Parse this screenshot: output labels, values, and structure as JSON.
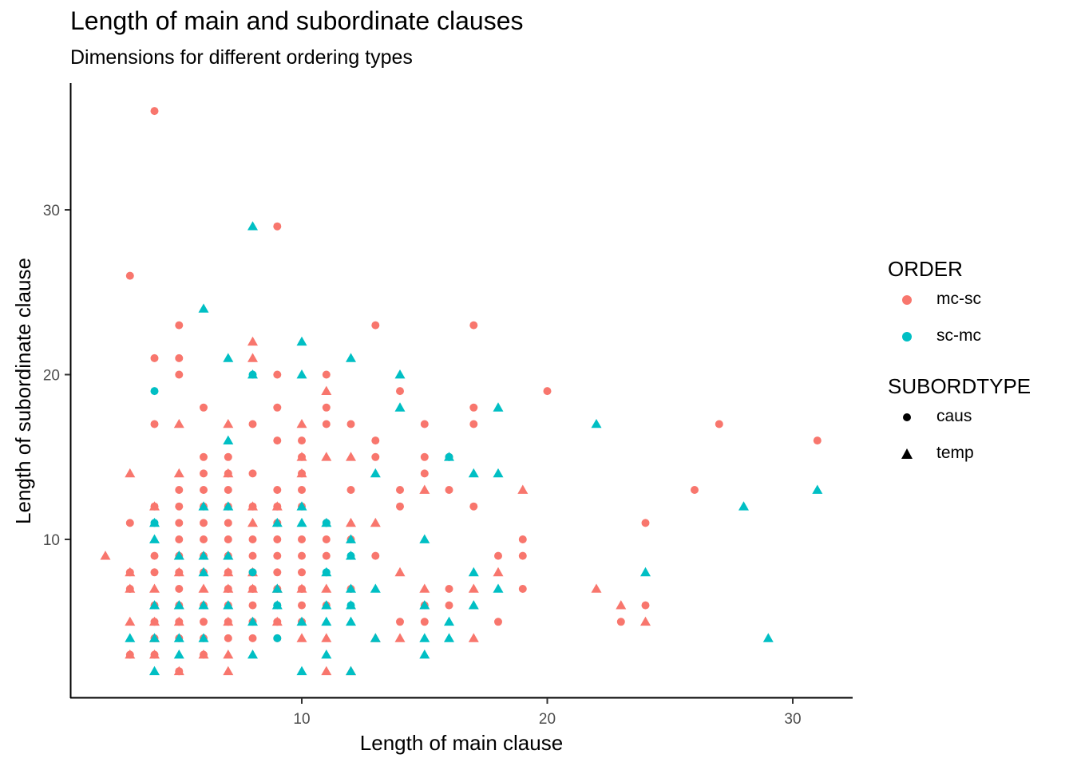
{
  "title": "Length of main and subordinate clauses",
  "subtitle": "Dimensions for different ordering types",
  "legend": {
    "order": {
      "title": "ORDER",
      "items": [
        {
          "label": "mc-sc",
          "color": "#F8766D"
        },
        {
          "label": "sc-mc",
          "color": "#00BFC4"
        }
      ]
    },
    "subordtype": {
      "title": "SUBORDTYPE",
      "items": [
        {
          "label": "caus",
          "shape": "circle"
        },
        {
          "label": "temp",
          "shape": "triangle"
        }
      ]
    }
  },
  "chart_data": {
    "type": "scatter",
    "title": "Length of main and subordinate clauses",
    "subtitle": "Dimensions for different ordering types",
    "xlabel": "Length of main clause",
    "ylabel": "Length of subordinate clause",
    "xlim": [
      1,
      33
    ],
    "ylim": [
      0,
      37
    ],
    "xticks": [
      10,
      20,
      30
    ],
    "yticks": [
      10,
      20,
      30
    ],
    "grid": false,
    "legend_position": "right",
    "colors": {
      "mc-sc": "#F8766D",
      "sc-mc": "#00BFC4"
    },
    "series": [
      {
        "order": "mc-sc",
        "subordtype": "caus",
        "points": [
          [
            4,
            36
          ],
          [
            9,
            29
          ],
          [
            3,
            26
          ],
          [
            5,
            23
          ],
          [
            13,
            23
          ],
          [
            17,
            23
          ],
          [
            4,
            21
          ],
          [
            5,
            21
          ],
          [
            5,
            20
          ],
          [
            9,
            20
          ],
          [
            11,
            20
          ],
          [
            20,
            19
          ],
          [
            14,
            19
          ],
          [
            6,
            18
          ],
          [
            9,
            18
          ],
          [
            11,
            18
          ],
          [
            17,
            18
          ],
          [
            27,
            17
          ],
          [
            4,
            17
          ],
          [
            8,
            17
          ],
          [
            11,
            17
          ],
          [
            12,
            17
          ],
          [
            15,
            17
          ],
          [
            17,
            17
          ],
          [
            31,
            16
          ],
          [
            9,
            16
          ],
          [
            10,
            16
          ],
          [
            13,
            16
          ],
          [
            6,
            15
          ],
          [
            7,
            15
          ],
          [
            10,
            15
          ],
          [
            13,
            15
          ],
          [
            15,
            15
          ],
          [
            16,
            15
          ],
          [
            6,
            14
          ],
          [
            7,
            14
          ],
          [
            8,
            14
          ],
          [
            10,
            14
          ],
          [
            15,
            14
          ],
          [
            26,
            13
          ],
          [
            5,
            13
          ],
          [
            6,
            13
          ],
          [
            7,
            13
          ],
          [
            9,
            13
          ],
          [
            10,
            13
          ],
          [
            12,
            13
          ],
          [
            14,
            13
          ],
          [
            16,
            13
          ],
          [
            4,
            12
          ],
          [
            5,
            12
          ],
          [
            6,
            12
          ],
          [
            7,
            12
          ],
          [
            8,
            12
          ],
          [
            9,
            12
          ],
          [
            10,
            12
          ],
          [
            14,
            12
          ],
          [
            17,
            12
          ],
          [
            3,
            11
          ],
          [
            5,
            11
          ],
          [
            6,
            11
          ],
          [
            7,
            11
          ],
          [
            9,
            11
          ],
          [
            11,
            11
          ],
          [
            24,
            11
          ],
          [
            5,
            10
          ],
          [
            6,
            10
          ],
          [
            7,
            10
          ],
          [
            8,
            10
          ],
          [
            9,
            10
          ],
          [
            10,
            10
          ],
          [
            11,
            10
          ],
          [
            12,
            10
          ],
          [
            19,
            10
          ],
          [
            4,
            9
          ],
          [
            5,
            9
          ],
          [
            6,
            9
          ],
          [
            7,
            9
          ],
          [
            8,
            9
          ],
          [
            9,
            9
          ],
          [
            10,
            9
          ],
          [
            11,
            9
          ],
          [
            13,
            9
          ],
          [
            18,
            9
          ],
          [
            19,
            9
          ],
          [
            3,
            8
          ],
          [
            4,
            8
          ],
          [
            5,
            8
          ],
          [
            6,
            8
          ],
          [
            7,
            8
          ],
          [
            8,
            8
          ],
          [
            9,
            8
          ],
          [
            10,
            8
          ],
          [
            3,
            7
          ],
          [
            5,
            7
          ],
          [
            7,
            7
          ],
          [
            8,
            7
          ],
          [
            9,
            7
          ],
          [
            10,
            7
          ],
          [
            12,
            7
          ],
          [
            16,
            7
          ],
          [
            19,
            7
          ],
          [
            4,
            6
          ],
          [
            5,
            6
          ],
          [
            6,
            6
          ],
          [
            7,
            6
          ],
          [
            8,
            6
          ],
          [
            9,
            6
          ],
          [
            10,
            6
          ],
          [
            11,
            6
          ],
          [
            15,
            6
          ],
          [
            16,
            6
          ],
          [
            24,
            6
          ],
          [
            4,
            5
          ],
          [
            5,
            5
          ],
          [
            6,
            5
          ],
          [
            7,
            5
          ],
          [
            8,
            5
          ],
          [
            9,
            5
          ],
          [
            10,
            5
          ],
          [
            14,
            5
          ],
          [
            15,
            5
          ],
          [
            18,
            5
          ],
          [
            23,
            5
          ],
          [
            4,
            4
          ],
          [
            5,
            4
          ],
          [
            6,
            4
          ],
          [
            7,
            4
          ],
          [
            8,
            4
          ],
          [
            9,
            4
          ],
          [
            3,
            3
          ],
          [
            4,
            3
          ],
          [
            6,
            3
          ],
          [
            5,
            2
          ]
        ]
      },
      {
        "order": "mc-sc",
        "subordtype": "temp",
        "points": [
          [
            8,
            22
          ],
          [
            8,
            21
          ],
          [
            11,
            19
          ],
          [
            5,
            17
          ],
          [
            7,
            17
          ],
          [
            10,
            17
          ],
          [
            10,
            15
          ],
          [
            11,
            15
          ],
          [
            12,
            15
          ],
          [
            3,
            14
          ],
          [
            5,
            14
          ],
          [
            7,
            14
          ],
          [
            10,
            14
          ],
          [
            15,
            13
          ],
          [
            19,
            13
          ],
          [
            4,
            12
          ],
          [
            8,
            12
          ],
          [
            9,
            12
          ],
          [
            8,
            11
          ],
          [
            12,
            11
          ],
          [
            13,
            11
          ],
          [
            2,
            9
          ],
          [
            5,
            9
          ],
          [
            7,
            9
          ],
          [
            3,
            8
          ],
          [
            5,
            8
          ],
          [
            7,
            8
          ],
          [
            8,
            8
          ],
          [
            14,
            8
          ],
          [
            18,
            8
          ],
          [
            3,
            7
          ],
          [
            4,
            7
          ],
          [
            6,
            7
          ],
          [
            7,
            7
          ],
          [
            8,
            7
          ],
          [
            9,
            7
          ],
          [
            10,
            7
          ],
          [
            11,
            7
          ],
          [
            15,
            7
          ],
          [
            17,
            7
          ],
          [
            22,
            7
          ],
          [
            5,
            6
          ],
          [
            23,
            6
          ],
          [
            3,
            5
          ],
          [
            4,
            5
          ],
          [
            5,
            5
          ],
          [
            7,
            5
          ],
          [
            9,
            5
          ],
          [
            24,
            5
          ],
          [
            4,
            4
          ],
          [
            10,
            4
          ],
          [
            11,
            4
          ],
          [
            13,
            4
          ],
          [
            14,
            4
          ],
          [
            17,
            4
          ],
          [
            3,
            3
          ],
          [
            4,
            3
          ],
          [
            6,
            3
          ],
          [
            7,
            3
          ],
          [
            5,
            2
          ],
          [
            7,
            2
          ],
          [
            11,
            2
          ],
          [
            12,
            2
          ]
        ]
      },
      {
        "order": "sc-mc",
        "subordtype": "caus",
        "points": [
          [
            4,
            19
          ],
          [
            8,
            20
          ],
          [
            16,
            15
          ],
          [
            4,
            11
          ],
          [
            11,
            11
          ],
          [
            12,
            9
          ],
          [
            8,
            8
          ],
          [
            11,
            8
          ],
          [
            9,
            6
          ],
          [
            12,
            6
          ],
          [
            9,
            4
          ]
        ]
      },
      {
        "order": "sc-mc",
        "subordtype": "temp",
        "points": [
          [
            8,
            29
          ],
          [
            6,
            24
          ],
          [
            10,
            22
          ],
          [
            7,
            21
          ],
          [
            12,
            21
          ],
          [
            8,
            20
          ],
          [
            10,
            20
          ],
          [
            14,
            20
          ],
          [
            14,
            18
          ],
          [
            18,
            18
          ],
          [
            22,
            17
          ],
          [
            7,
            16
          ],
          [
            16,
            15
          ],
          [
            13,
            14
          ],
          [
            17,
            14
          ],
          [
            18,
            14
          ],
          [
            28,
            12
          ],
          [
            31,
            13
          ],
          [
            6,
            12
          ],
          [
            7,
            12
          ],
          [
            10,
            12
          ],
          [
            4,
            11
          ],
          [
            9,
            11
          ],
          [
            10,
            11
          ],
          [
            11,
            11
          ],
          [
            4,
            10
          ],
          [
            12,
            10
          ],
          [
            15,
            10
          ],
          [
            5,
            9
          ],
          [
            6,
            9
          ],
          [
            7,
            9
          ],
          [
            12,
            9
          ],
          [
            6,
            8
          ],
          [
            11,
            8
          ],
          [
            17,
            8
          ],
          [
            24,
            8
          ],
          [
            9,
            7
          ],
          [
            12,
            7
          ],
          [
            13,
            7
          ],
          [
            18,
            7
          ],
          [
            4,
            6
          ],
          [
            5,
            6
          ],
          [
            6,
            6
          ],
          [
            7,
            6
          ],
          [
            9,
            6
          ],
          [
            11,
            6
          ],
          [
            12,
            6
          ],
          [
            15,
            6
          ],
          [
            17,
            6
          ],
          [
            8,
            5
          ],
          [
            10,
            5
          ],
          [
            11,
            5
          ],
          [
            12,
            5
          ],
          [
            16,
            5
          ],
          [
            3,
            4
          ],
          [
            4,
            4
          ],
          [
            5,
            4
          ],
          [
            6,
            4
          ],
          [
            13,
            4
          ],
          [
            15,
            4
          ],
          [
            16,
            4
          ],
          [
            29,
            4
          ],
          [
            5,
            3
          ],
          [
            8,
            3
          ],
          [
            11,
            3
          ],
          [
            15,
            3
          ],
          [
            4,
            2
          ],
          [
            10,
            2
          ],
          [
            12,
            2
          ]
        ]
      }
    ]
  }
}
